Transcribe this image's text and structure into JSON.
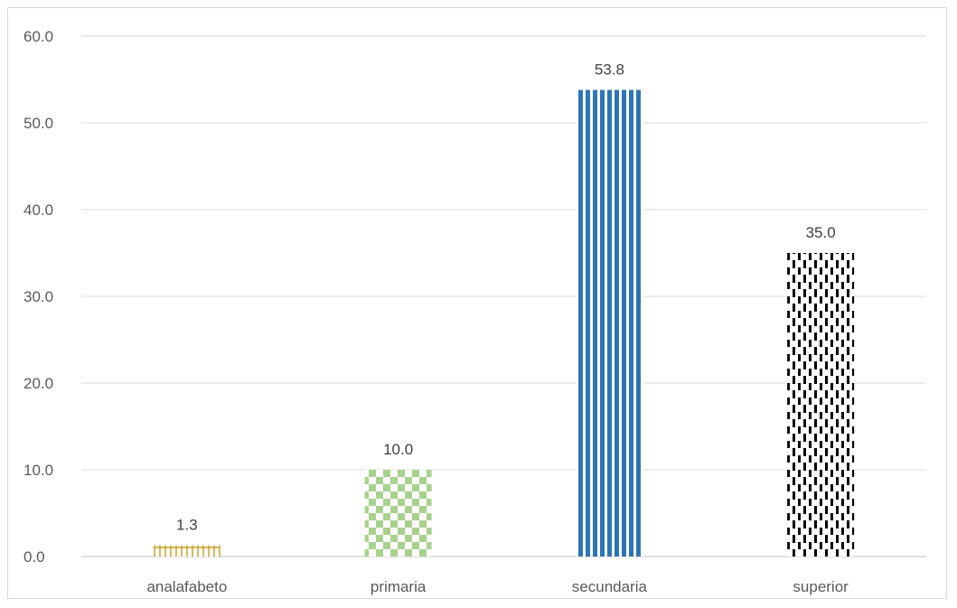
{
  "chart_data": {
    "type": "bar",
    "title": "",
    "xlabel": "",
    "ylabel": "",
    "categories": [
      "analafabeto",
      "primaria",
      "secundaria",
      "superior"
    ],
    "values": [
      1.3,
      10.0,
      53.8,
      35.0
    ],
    "value_labels": [
      "1.3",
      "10.0",
      "53.8",
      "35.0"
    ],
    "ylim": [
      0,
      60
    ],
    "yticks": [
      0,
      10,
      20,
      30,
      40,
      50,
      60
    ],
    "ytick_labels": [
      "0.0",
      "10.0",
      "20.0",
      "30.0",
      "40.0",
      "50.0",
      "60.0"
    ],
    "grid": true,
    "legend": "none",
    "bar_styles": [
      {
        "pattern": "cross-hatch",
        "color": "#c9a227"
      },
      {
        "pattern": "checkerboard",
        "color": "#a9d18e"
      },
      {
        "pattern": "vertical-stripes",
        "color": "#2e75b6"
      },
      {
        "pattern": "dashed-vertical",
        "color": "#000000"
      }
    ],
    "gridline_color": "#d9d9d9",
    "axis_color": "#bfbfbf"
  }
}
